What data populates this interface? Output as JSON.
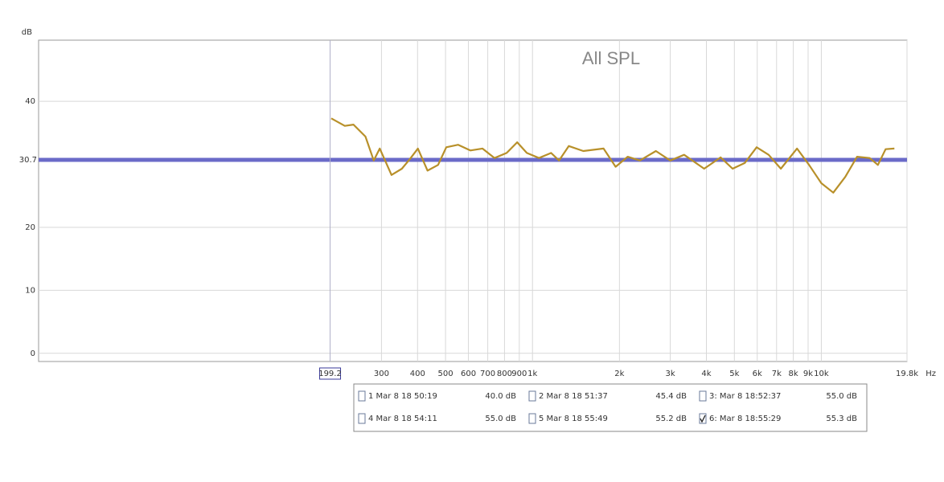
{
  "chart_data": {
    "type": "line",
    "title": "All SPL",
    "y_label": "dB",
    "x_unit": "Hz",
    "log_x": true,
    "grid": true,
    "xlim": [
      19.5,
      19800
    ],
    "ylim": [
      -1.3,
      49.7
    ],
    "xticks": [
      300,
      400,
      500,
      600,
      700,
      800,
      900,
      {
        "value": 1000,
        "label": "1k"
      },
      {
        "value": 2000,
        "label": "2k"
      },
      {
        "value": 3000,
        "label": "3k"
      },
      {
        "value": 4000,
        "label": "4k"
      },
      {
        "value": 5000,
        "label": "5k"
      },
      {
        "value": 6000,
        "label": "6k"
      },
      {
        "value": 7000,
        "label": "7k"
      },
      {
        "value": 8000,
        "label": "8k"
      },
      {
        "value": 9000,
        "label": "9k"
      },
      {
        "value": 10000,
        "label": "10k"
      },
      {
        "value": 19800,
        "label": "19.8k"
      }
    ],
    "yticks": [
      0,
      10,
      20,
      40
    ],
    "cursor_x": 199.2,
    "cursor_y": 30.7,
    "series": [
      {
        "color": "#b8902a",
        "x": [
          201,
          224,
          240,
          264,
          282,
          296,
          325,
          353,
          376,
          401,
          433,
          471,
          503,
          553,
          609,
          671,
          739,
          814,
          885,
          956,
          1053,
          1160,
          1236,
          1336,
          1499,
          1762,
          1940,
          2135,
          2353,
          2675,
          3000,
          3350,
          3930,
          4480,
          4930,
          5430,
          5970,
          6570,
          7240,
          8240,
          9070,
          10000,
          11000,
          12100,
          13300,
          14700,
          15700,
          16700,
          17900
        ],
        "values": [
          37.3,
          36.1,
          36.3,
          34.4,
          30.6,
          32.5,
          28.3,
          29.3,
          30.8,
          32.5,
          29.0,
          29.9,
          32.7,
          33.1,
          32.2,
          32.5,
          31.0,
          31.8,
          33.5,
          31.8,
          31.0,
          31.8,
          30.6,
          32.9,
          32.1,
          32.5,
          29.6,
          31.2,
          30.6,
          32.1,
          30.6,
          31.5,
          29.3,
          31.1,
          29.3,
          30.2,
          32.7,
          31.5,
          29.3,
          32.5,
          29.9,
          27.0,
          25.5,
          28.0,
          31.2,
          31.0,
          29.9,
          32.4,
          32.5
        ]
      }
    ],
    "legend_entries": [
      {
        "label": "1 Mar 8 18 50:19",
        "level": "40.0 dB",
        "color": "#c00000",
        "checked": false
      },
      {
        "label": "2 Mar 8 18 51:37",
        "level": "45.4 dB",
        "color": "#007a00",
        "checked": false
      },
      {
        "label": "3: Mar 8 18:52:37",
        "level": "55.0 dB",
        "color": "#3060a0",
        "checked": false
      },
      {
        "label": "4 Mar 8 18 54:11",
        "level": "55.0 dB",
        "color": "#900090",
        "checked": false
      },
      {
        "label": "5 Mar 8 18 55:49",
        "level": "55.2 dB",
        "color": "#007878",
        "checked": false
      },
      {
        "label": "6: Mar 8 18:55:29",
        "level": "55.3 dB",
        "color": "#a88420",
        "checked": true
      }
    ]
  }
}
